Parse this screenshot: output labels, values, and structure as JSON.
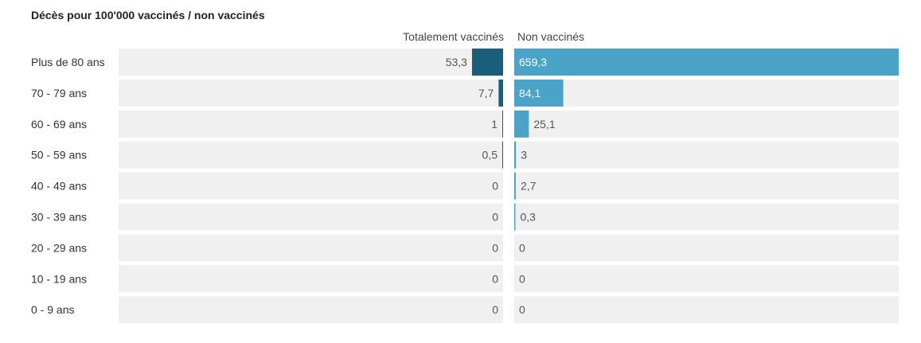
{
  "chart_data": {
    "type": "bar",
    "title": "Décès pour 100'000 vaccinés / non vaccinés",
    "categories": [
      "Plus de 80 ans",
      "70 - 79 ans",
      "60 - 69 ans",
      "50 - 59 ans",
      "40 - 49 ans",
      "30 - 39 ans",
      "20 - 29 ans",
      "10 - 19 ans",
      "0 - 9 ans"
    ],
    "series": [
      {
        "name": "Totalement vaccinés",
        "values": [
          53.3,
          7.7,
          1,
          0.5,
          0,
          0,
          0,
          0,
          0
        ],
        "labels": [
          "53,3",
          "7,7",
          "1",
          "0,5",
          "0",
          "0",
          "0",
          "0",
          "0"
        ],
        "color": "#1a5f79"
      },
      {
        "name": "Non vaccinés",
        "values": [
          659.3,
          84.1,
          25.1,
          3,
          2.7,
          0.3,
          0,
          0,
          0
        ],
        "labels": [
          "659,3",
          "84,1",
          "25,1",
          "3",
          "2,7",
          "0,3",
          "0",
          "0",
          "0"
        ],
        "color": "#4ba3c8"
      }
    ],
    "xlim": [
      0,
      659.3
    ],
    "background_color": "#f0f0f0"
  }
}
